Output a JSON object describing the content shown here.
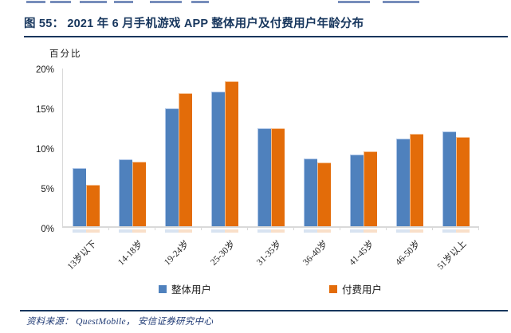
{
  "page": {
    "title": "图 55： 2021 年 6 月手机游戏 APP 整体用户及付费用户年龄分布",
    "source": "资料来源： QuestMobile， 安信证券研究中心",
    "accent_color": "#17365d"
  },
  "chart_data": {
    "type": "bar",
    "title": "2021 年 6 月手机游戏 APP 整体用户及付费用户年龄分布",
    "ylabel": "百分比",
    "xlabel": "",
    "categories": [
      "13岁以下",
      "14-18岁",
      "19-24岁",
      "25-30岁",
      "31-35岁",
      "36-40岁",
      "41-45岁",
      "46-50岁",
      "51岁以上"
    ],
    "series": [
      {
        "name": "整体用户",
        "color": "#4f81bd",
        "edge_color": "#aec6e8",
        "values": [
          7.3,
          8.4,
          14.8,
          16.9,
          12.3,
          8.5,
          9.0,
          11.0,
          11.9
        ]
      },
      {
        "name": "付费用户",
        "color": "#e36c09",
        "edge_color": "#f5be8e",
        "values": [
          5.2,
          8.1,
          16.7,
          18.2,
          12.3,
          8.0,
          9.4,
          11.6,
          11.2
        ]
      }
    ],
    "ylim": [
      0,
      20
    ],
    "y_ticks": [
      "0%",
      "5%",
      "10%",
      "15%",
      "20%"
    ],
    "grid": false,
    "legend_position": "bottom"
  }
}
